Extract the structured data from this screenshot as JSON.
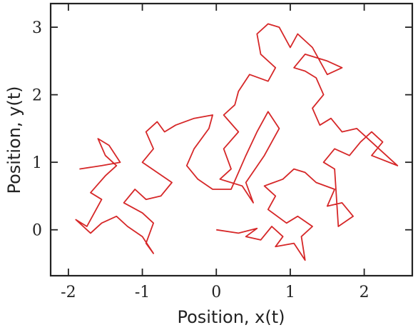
{
  "chart_data": {
    "type": "line",
    "xlabel": "Position, x(t)",
    "ylabel": "Position, y(t)",
    "x": [
      0,
      0.3,
      0.55,
      0.4,
      0.6,
      0.75,
      0.9,
      0.8,
      1.05,
      1.2,
      1.15,
      1.3,
      1.1,
      0.95,
      0.7,
      0.8,
      0.65,
      0.9,
      1.05,
      1.2,
      1.35,
      1.6,
      1.5,
      1.7,
      1.85,
      1.65,
      1.6,
      1.45,
      1.6,
      1.8,
      1.95,
      2.1,
      2.25,
      2.1,
      2.45,
      2.2,
      1.9,
      1.7,
      1.55,
      1.4,
      1.3,
      1.45,
      1.35,
      1.2,
      1.05,
      1.2,
      1.5,
      1.7,
      1.5,
      1.3,
      1.1,
      1.0,
      0.85,
      0.7,
      0.55,
      0.6,
      0.8,
      0.7,
      0.45,
      0.3,
      0.25,
      0.1,
      0.3,
      0.1,
      0.2,
      0.05,
      0.35,
      0.5,
      0.4,
      0.65,
      0.85,
      0.7,
      0.55,
      0.4,
      0.2,
      -0.05,
      -0.25,
      -0.4,
      -0.3,
      -0.1,
      -0.05,
      -0.3,
      -0.55,
      -0.7,
      -0.8,
      -0.95,
      -0.85,
      -1.0,
      -0.8,
      -0.6,
      -0.75,
      -0.95,
      -1.1,
      -1.25,
      -1.0,
      -0.85,
      -0.95,
      -0.85,
      -1.0,
      -1.2,
      -1.35,
      -1.55,
      -1.7,
      -1.9,
      -1.75,
      -1.55,
      -1.7,
      -1.5,
      -1.35,
      -1.5,
      -1.6,
      -1.45,
      -1.3,
      -1.55,
      -1.85
    ],
    "y": [
      0,
      -0.05,
      0.02,
      -0.1,
      -0.15,
      0.05,
      -0.1,
      -0.25,
      -0.2,
      -0.45,
      -0.1,
      0.05,
      0.2,
      0.1,
      0.3,
      0.5,
      0.65,
      0.75,
      0.9,
      0.85,
      0.7,
      0.6,
      0.35,
      0.4,
      0.2,
      0.05,
      0.9,
      1.0,
      1.2,
      1.1,
      1.3,
      1.45,
      1.3,
      1.1,
      0.95,
      1.2,
      1.5,
      1.45,
      1.65,
      1.55,
      1.8,
      2.0,
      2.25,
      2.35,
      2.4,
      2.6,
      2.5,
      2.4,
      2.3,
      2.7,
      2.9,
      2.7,
      3.0,
      3.05,
      2.9,
      2.6,
      2.4,
      2.2,
      2.3,
      2.05,
      1.85,
      1.7,
      1.45,
      1.2,
      0.9,
      0.75,
      0.65,
      0.4,
      0.7,
      1.1,
      1.5,
      1.75,
      1.45,
      1.1,
      0.6,
      0.6,
      0.75,
      0.95,
      1.2,
      1.5,
      1.7,
      1.65,
      1.55,
      1.45,
      1.6,
      1.45,
      1.2,
      1.0,
      0.85,
      0.7,
      0.5,
      0.45,
      0.6,
      0.4,
      0.25,
      0.1,
      -0.2,
      -0.35,
      -0.1,
      0.05,
      0.2,
      0.1,
      -0.05,
      0.15,
      0.05,
      0.45,
      0.55,
      0.8,
      0.95,
      1.1,
      1.35,
      1.25,
      1.0,
      0.95,
      0.9
    ],
    "color": "#d62728",
    "xlim": [
      -2.24,
      2.65
    ],
    "ylim": [
      -0.68,
      3.35
    ],
    "xticks": [
      -2,
      -1,
      0,
      1,
      2
    ],
    "yticks": [
      0,
      1,
      2,
      3
    ]
  }
}
